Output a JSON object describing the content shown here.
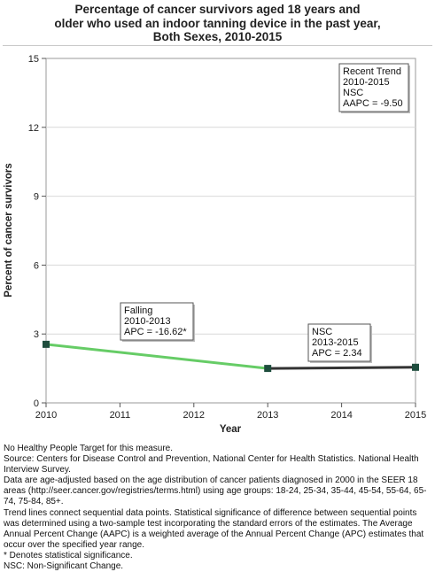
{
  "title_lines": [
    "Percentage of cancer survivors aged 18 years and",
    "older who used an indoor tanning device in the past year,",
    "Both Sexes,  2010-2015"
  ],
  "chart_data": {
    "type": "line",
    "title": "Percentage of cancer survivors aged 18 years and older who used an indoor tanning device in the past year, Both Sexes,  2010-2015",
    "xlabel": "Year",
    "ylabel": "Percent of cancer survivors",
    "xlim": [
      2010,
      2015
    ],
    "ylim": [
      0,
      15
    ],
    "x_ticks": [
      "2010",
      "2011",
      "2012",
      "2013",
      "2014",
      "2015"
    ],
    "y_ticks": [
      "0",
      "3",
      "6",
      "9",
      "12",
      "15"
    ],
    "grid": "horizontal",
    "points": [
      {
        "x": 2010,
        "y": 2.55
      },
      {
        "x": 2013,
        "y": 1.5
      },
      {
        "x": 2015,
        "y": 1.55
      }
    ],
    "trend_segments": [
      {
        "from": 2010,
        "to": 2013,
        "color": "#66cc66",
        "lines": [
          "Falling",
          "2010-2013",
          "APC = -16.62*"
        ]
      },
      {
        "from": 2013,
        "to": 2015,
        "color": "#333333",
        "lines": [
          "NSC",
          "2013-2015",
          "APC =  2.34"
        ]
      }
    ],
    "point_color": "#1e4d3d",
    "recent_trend": [
      "Recent Trend",
      "2010-2015",
      "NSC",
      "AAPC = -9.50"
    ]
  },
  "footnotes": [
    "No Healthy People Target for this measure.",
    "Source: Centers for Disease Control and Prevention, National Center for Health Statistics. National Health Interview Survey.",
    "Data are age-adjusted based on the age distribution of cancer patients diagnosed in 2000 in the SEER 18 areas (http://seer.cancer.gov/registries/terms.html) using age groups: 18-24, 25-34, 35-44, 45-54, 55-64, 65-74, 75-84, 85+.",
    "Trend lines connect sequential data points. Statistical significance of difference between sequential points was determined using a two-sample test incorporating the standard errors of the estimates. The Average Annual Percent Change (AAPC) is a weighted average of the Annual Percent Change (APC) estimates that occur over the specified year range.",
    "* Denotes statistical significance.",
    "NSC: Non-Significant Change."
  ]
}
